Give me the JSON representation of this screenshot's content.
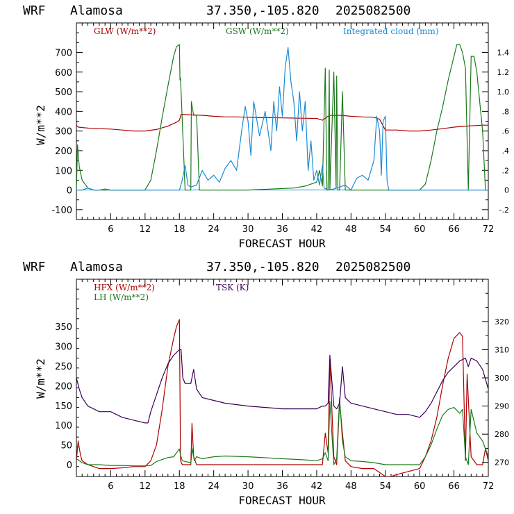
{
  "chart_data": [
    {
      "type": "line",
      "header": {
        "model": "WRF",
        "station": "Alamosa",
        "coords": "37.350,-105.820",
        "date": "2025082500"
      },
      "xlabel": "FORECAST HOUR",
      "ylabel": "W/m**2",
      "xlim": [
        0,
        72
      ],
      "ylim": [
        -150,
        850
      ],
      "y2lim": [
        -0.3,
        1.7
      ],
      "xticks": [
        6,
        12,
        18,
        24,
        30,
        36,
        42,
        48,
        54,
        60,
        66,
        72
      ],
      "yticks": [
        -100,
        0,
        100,
        200,
        300,
        400,
        500,
        600,
        700
      ],
      "y2ticks": [
        "-.2",
        "0",
        ".2",
        ".4",
        ".6",
        ".8",
        "1.0",
        "1.2",
        "1.4"
      ],
      "y2tick_values": [
        -0.2,
        0,
        0.2,
        0.4,
        0.6,
        0.8,
        1.0,
        1.2,
        1.4
      ],
      "series": [
        {
          "name": "GLW (W/m**2)",
          "axis": "left",
          "color": "#b00000",
          "x": [
            0,
            0.3,
            1,
            2,
            4,
            6,
            8,
            10,
            12,
            14,
            16,
            17.5,
            18,
            18.3,
            20,
            22,
            24,
            26,
            28,
            30,
            32,
            34,
            36,
            38,
            40,
            42,
            43,
            44,
            44.3,
            46,
            48,
            50,
            52,
            53,
            54,
            56,
            58,
            60,
            62,
            64,
            66,
            68,
            70,
            71,
            72
          ],
          "y": [
            330,
            320,
            318,
            315,
            312,
            310,
            305,
            300,
            300,
            308,
            325,
            345,
            355,
            385,
            382,
            380,
            375,
            372,
            372,
            370,
            368,
            368,
            367,
            366,
            365,
            364,
            355,
            375,
            380,
            380,
            375,
            372,
            370,
            360,
            305,
            305,
            300,
            300,
            305,
            312,
            320,
            325,
            328,
            330,
            330
          ]
        },
        {
          "name": "GSW (W/m**2)",
          "axis": "left",
          "color": "#1a7a1a",
          "x": [
            0,
            0.2,
            0.5,
            1,
            2,
            3,
            12,
            13,
            14,
            15,
            16,
            17,
            17.5,
            18,
            18.1,
            18.2,
            19,
            20,
            20.1,
            20.5,
            21,
            21.5,
            22,
            22.5,
            30,
            38,
            40,
            42,
            42.5,
            43,
            43.5,
            43.8,
            44,
            44.2,
            44.3,
            45,
            45.4,
            45.5,
            45.7,
            46,
            46.5,
            47,
            48,
            50,
            52,
            54,
            60,
            61,
            62,
            63,
            64,
            65,
            66,
            66.5,
            67,
            67.5,
            68,
            68.5,
            69,
            69.5,
            70,
            70.5,
            71,
            71.5,
            72
          ],
          "y": [
            0,
            230,
            120,
            50,
            10,
            0,
            0,
            50,
            200,
            370,
            530,
            680,
            730,
            740,
            560,
            570,
            0,
            0,
            450,
            380,
            380,
            0,
            0,
            0,
            0,
            10,
            20,
            40,
            100,
            20,
            620,
            0,
            0,
            610,
            0,
            600,
            10,
            580,
            0,
            0,
            500,
            0,
            0,
            0,
            0,
            0,
            0,
            30,
            150,
            300,
            420,
            560,
            680,
            740,
            740,
            700,
            620,
            0,
            680,
            680,
            600,
            450,
            300,
            0,
            0
          ]
        },
        {
          "name": "Integrated cloud (mm)",
          "axis": "right",
          "color": "#1a8ad4",
          "x": [
            0,
            1,
            2,
            3,
            4,
            5,
            6,
            17,
            18,
            18.5,
            19,
            19.5,
            20,
            21,
            22,
            23,
            24,
            25,
            26,
            27,
            28,
            29,
            29.5,
            30,
            30.5,
            31,
            32,
            33,
            34,
            34.5,
            35,
            35.5,
            36,
            36.5,
            37,
            37.5,
            38,
            38.5,
            39,
            39.5,
            40,
            40.5,
            41,
            41.5,
            42,
            42.5,
            43,
            43.3,
            44,
            45,
            46,
            47,
            48,
            49,
            50,
            51,
            52,
            52.5,
            53,
            53.3,
            53.6,
            54,
            54.3,
            54.6,
            55,
            56,
            60,
            72
          ],
          "y": [
            0,
            0,
            0.02,
            0,
            0,
            0.01,
            0,
            0,
            0,
            0.1,
            0.25,
            0.05,
            0.03,
            0.05,
            0.2,
            0.1,
            0.15,
            0.08,
            0.22,
            0.3,
            0.2,
            0.65,
            0.85,
            0.7,
            0.35,
            0.9,
            0.55,
            0.8,
            0.4,
            0.9,
            0.6,
            1.05,
            0.75,
            1.25,
            1.45,
            1.1,
            0.9,
            0.5,
            1.0,
            0.6,
            0.9,
            0.2,
            0.5,
            0.1,
            0.2,
            0.05,
            0.25,
            0.02,
            0,
            0.01,
            0.03,
            0.05,
            0.0,
            0.12,
            0.15,
            0.1,
            0.3,
            0.75,
            0.6,
            0.15,
            0.7,
            0.75,
            0.1,
            0,
            0,
            0,
            0,
            0
          ]
        }
      ]
    },
    {
      "type": "line",
      "header": {
        "model": "WRF",
        "station": "Alamosa",
        "coords": "37.350,-105.820",
        "date": "2025082500"
      },
      "xlabel": "FORECAST HOUR",
      "ylabel": "W/m**2",
      "xlim": [
        0,
        72
      ],
      "ylim": [
        -30,
        470
      ],
      "y2lim": [
        265,
        335
      ],
      "xticks": [
        6,
        12,
        18,
        24,
        30,
        36,
        42,
        48,
        54,
        60,
        66,
        72
      ],
      "yticks": [
        0,
        50,
        100,
        150,
        200,
        250,
        300,
        350
      ],
      "y2ticks": [
        "270",
        "280",
        "290",
        "300",
        "310",
        "320"
      ],
      "y2tick_values": [
        270,
        280,
        290,
        300,
        310,
        320
      ],
      "series": [
        {
          "name": "HFX (W/m**2)",
          "axis": "left",
          "color": "#b00000",
          "x": [
            0,
            0.3,
            0.7,
            1,
            2,
            4,
            6,
            8,
            10,
            12,
            13,
            14,
            15,
            16,
            17,
            17.5,
            18,
            18.2,
            18.5,
            20,
            20.2,
            20.5,
            21,
            22,
            30,
            36,
            42,
            43,
            43.5,
            44,
            44.3,
            45,
            45.5,
            46,
            46.5,
            47,
            48,
            50,
            52,
            54,
            55,
            56,
            60,
            61,
            62,
            63,
            64,
            65,
            66,
            67,
            67.5,
            68,
            68.3,
            69,
            70,
            71,
            71.5,
            72
          ],
          "y": [
            10,
            60,
            25,
            10,
            0,
            -10,
            -10,
            -8,
            -5,
            -5,
            10,
            50,
            140,
            250,
            320,
            350,
            368,
            10,
            0,
            0,
            105,
            20,
            0,
            0,
            0,
            0,
            0,
            0,
            80,
            30,
            265,
            20,
            0,
            160,
            80,
            10,
            -5,
            -10,
            -10,
            -30,
            -30,
            -25,
            -10,
            20,
            60,
            120,
            200,
            270,
            320,
            335,
            325,
            10,
            230,
            20,
            0,
            0,
            40,
            10
          ]
        },
        {
          "name": "LH (W/m**2)",
          "axis": "left",
          "color": "#1a7a1a",
          "x": [
            0,
            0.5,
            1,
            2,
            4,
            6,
            8,
            10,
            12,
            13,
            14,
            16,
            17,
            18,
            18.2,
            18.5,
            19,
            20,
            20.3,
            20.6,
            21,
            22,
            24,
            26,
            30,
            36,
            40,
            42,
            43,
            43.5,
            44,
            44.3,
            45,
            45.5,
            46,
            46.5,
            47,
            48,
            50,
            52,
            54,
            56,
            58,
            60,
            61,
            62,
            63,
            64,
            65,
            66,
            67,
            67.5,
            68,
            68.5,
            69,
            70,
            71,
            72
          ],
          "y": [
            15,
            10,
            5,
            0,
            0,
            -2,
            -2,
            -3,
            -3,
            -2,
            8,
            18,
            20,
            40,
            25,
            10,
            8,
            5,
            40,
            10,
            20,
            15,
            20,
            22,
            20,
            15,
            12,
            10,
            15,
            30,
            10,
            160,
            0,
            15,
            170,
            60,
            20,
            10,
            8,
            5,
            0,
            0,
            0,
            0,
            20,
            50,
            90,
            125,
            140,
            145,
            130,
            140,
            20,
            0,
            140,
            80,
            60,
            20
          ]
        },
        {
          "name": "TSK (K)",
          "axis": "right",
          "color": "#3a0055",
          "x": [
            0,
            0.5,
            1,
            2,
            3,
            4,
            5,
            6,
            8,
            10,
            12,
            12.5,
            13,
            14,
            15,
            16,
            17,
            18,
            18.3,
            18.6,
            19,
            20,
            20.5,
            21,
            22,
            24,
            26,
            30,
            36,
            40,
            42,
            43,
            43.5,
            44,
            44.3,
            45,
            45.5,
            46,
            46.5,
            47,
            48,
            50,
            54,
            56,
            58,
            60,
            61,
            62,
            63,
            64,
            65,
            66,
            67,
            68,
            68.5,
            69,
            70,
            71,
            72
          ],
          "y": [
            300,
            296,
            293,
            290,
            289,
            288,
            288,
            288,
            286,
            285,
            284,
            284,
            288,
            294,
            300,
            305,
            308,
            310,
            310,
            300,
            298,
            298,
            303,
            296,
            293,
            292,
            291,
            290,
            289,
            289,
            289,
            290,
            290,
            291,
            308,
            290,
            289,
            291,
            304,
            293,
            291,
            290,
            288,
            287,
            287,
            286,
            288,
            291,
            295,
            299,
            302,
            304,
            306,
            307,
            304,
            307,
            306,
            303,
            296
          ]
        }
      ]
    }
  ]
}
